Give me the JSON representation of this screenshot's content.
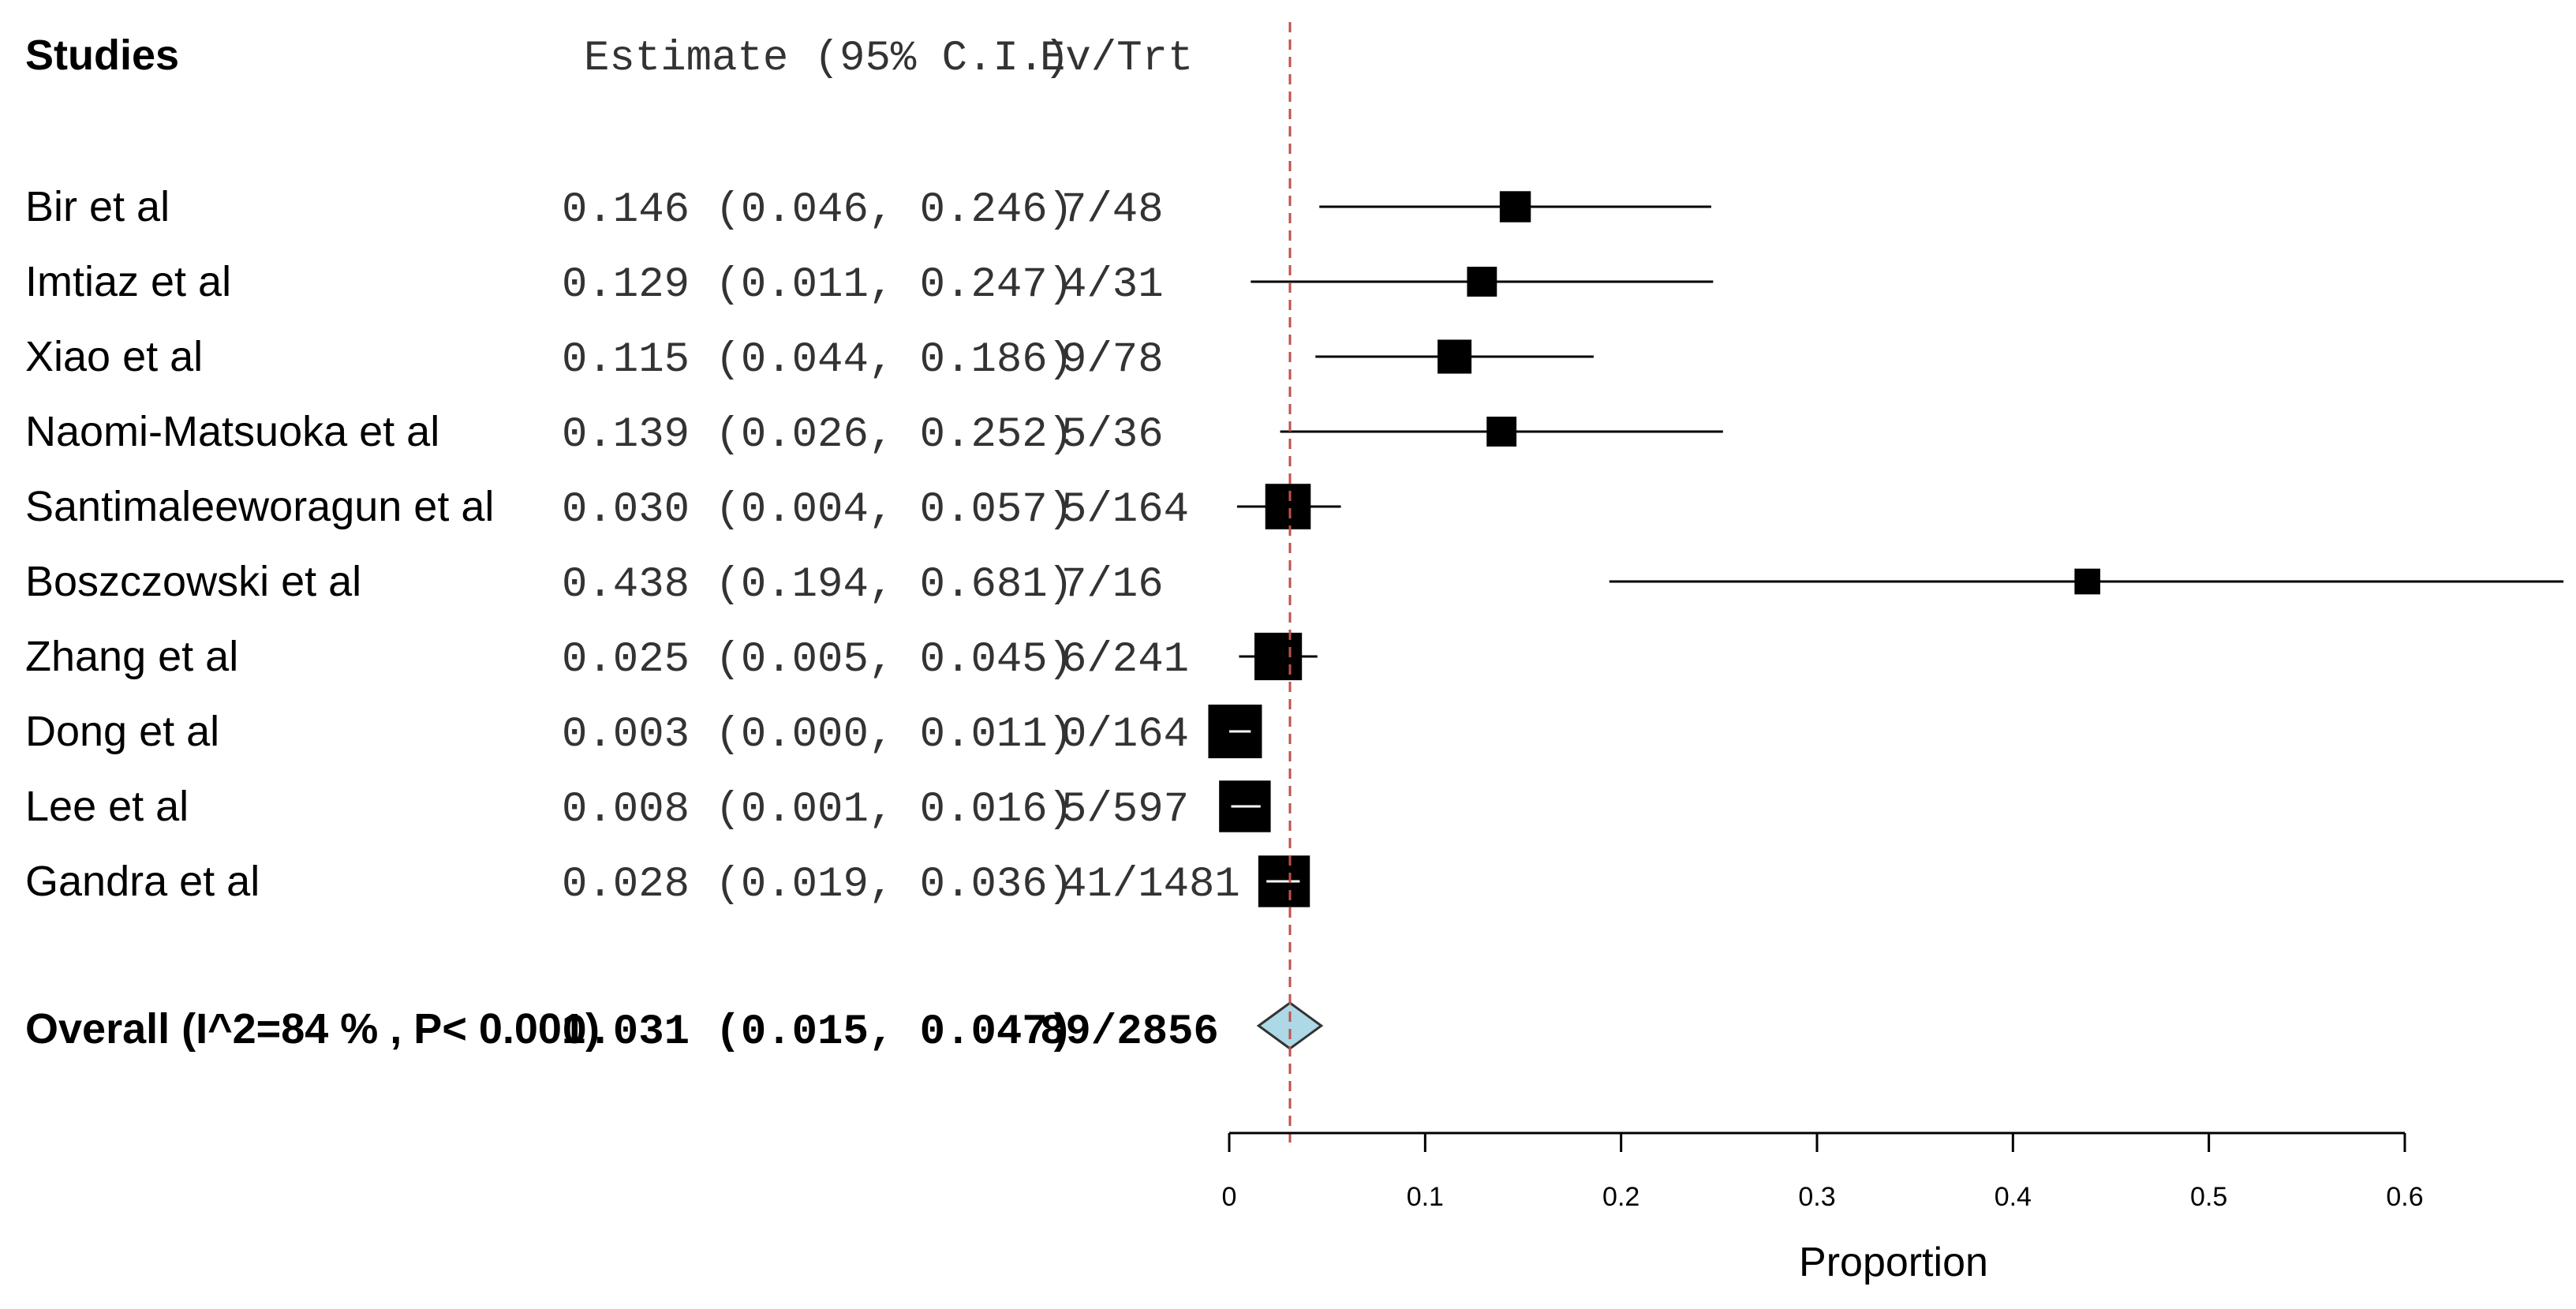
{
  "chart_data": {
    "type": "forest",
    "headers": {
      "studies": "Studies",
      "estimate": "Estimate (95% C.I.)",
      "events": "Ev/Trt"
    },
    "studies": [
      {
        "name": "Bir et al",
        "estimate": 0.146,
        "lower": 0.046,
        "upper": 0.246,
        "ci_text": "0.146 (0.046, 0.246)",
        "events": "7/48",
        "weight_rel": 0.45
      },
      {
        "name": "Imtiaz et al",
        "estimate": 0.129,
        "lower": 0.011,
        "upper": 0.247,
        "ci_text": "0.129 (0.011, 0.247)",
        "events": "4/31",
        "weight_rel": 0.42
      },
      {
        "name": "Xiao et al",
        "estimate": 0.115,
        "lower": 0.044,
        "upper": 0.186,
        "ci_text": "0.115 (0.044, 0.186)",
        "events": "9/78",
        "weight_rel": 0.52
      },
      {
        "name": "Naomi-Matsuoka et al",
        "estimate": 0.139,
        "lower": 0.026,
        "upper": 0.252,
        "ci_text": "0.139 (0.026, 0.252)",
        "events": "5/36",
        "weight_rel": 0.42
      },
      {
        "name": "Santimaleeworagun et al",
        "estimate": 0.03,
        "lower": 0.004,
        "upper": 0.057,
        "ci_text": "0.030 (0.004, 0.057)",
        "events": "5/164",
        "weight_rel": 0.8
      },
      {
        "name": "Boszczowski et al",
        "estimate": 0.438,
        "lower": 0.194,
        "upper": 0.681,
        "ci_text": "0.438 (0.194, 0.681)",
        "events": "7/16",
        "weight_rel": 0.32
      },
      {
        "name": "Zhang et al",
        "estimate": 0.025,
        "lower": 0.005,
        "upper": 0.045,
        "ci_text": "0.025 (0.005, 0.045)",
        "events": "6/241",
        "weight_rel": 0.85
      },
      {
        "name": "Dong et al",
        "estimate": 0.003,
        "lower": 0.0,
        "upper": 0.011,
        "ci_text": "0.003 (0.000, 0.011)",
        "events": "0/164",
        "weight_rel": 1.0
      },
      {
        "name": " Lee et al",
        "estimate": 0.008,
        "lower": 0.001,
        "upper": 0.016,
        "ci_text": "0.008 (0.001, 0.016)",
        "events": "5/597",
        "weight_rel": 0.95
      },
      {
        "name": "Gandra et al",
        "estimate": 0.028,
        "lower": 0.019,
        "upper": 0.036,
        "ci_text": "0.028 (0.019, 0.036)",
        "events": "41/1481",
        "weight_rel": 0.95
      }
    ],
    "overall": {
      "name": "Overall (I^2=84 % , P< 0.001)",
      "estimate": 0.031,
      "lower": 0.015,
      "upper": 0.047,
      "ci_text": "0.031 (0.015, 0.047)",
      "events": "89/2856"
    },
    "reference_line": 0.031,
    "x_axis": {
      "label": "Proportion",
      "range": [
        0,
        0.6
      ],
      "ticks": [
        0,
        0.1,
        0.2,
        0.3,
        0.4,
        0.5,
        0.6
      ],
      "tick_labels": [
        "0",
        "0.1",
        "0.2",
        "0.3",
        "0.4",
        "0.5",
        "0.6"
      ]
    },
    "colors": {
      "marker": "#000000",
      "diamond": "#add8e6",
      "reference_line": "#c0504d"
    }
  }
}
